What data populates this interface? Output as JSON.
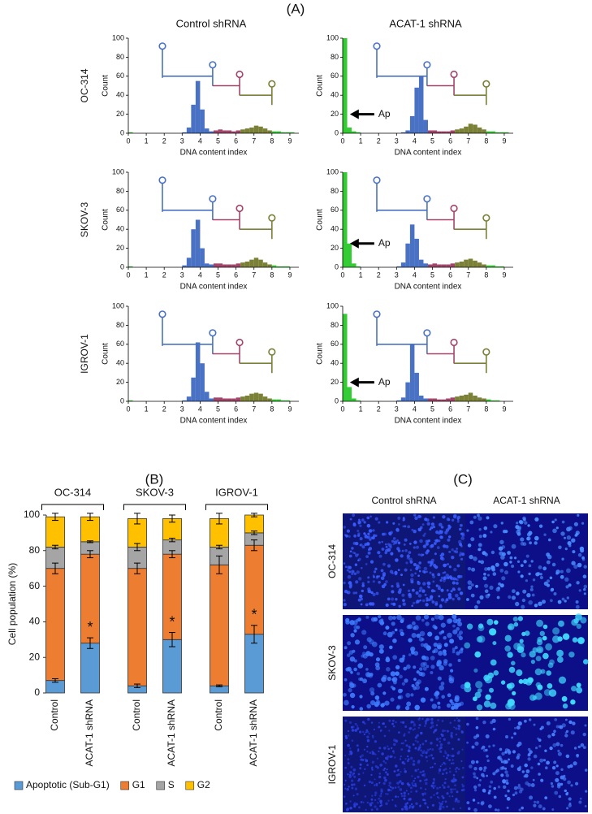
{
  "panel_labels": [
    "(A)",
    "(B)",
    "(C)"
  ],
  "panel_a": {
    "columns": [
      "Control shRNA",
      "ACAT-1 shRNA"
    ],
    "rows": [
      "OC-314",
      "SKOV-3",
      "IGROV-1"
    ]
  },
  "panel_c": {
    "columns": [
      "Control shRNA",
      "ACAT-1 shRNA"
    ],
    "rows": [
      "OC-314",
      "SKOV-3",
      "IGROV-1"
    ]
  },
  "chart_data": [
    {
      "type": "histogram",
      "xlabel": "DNA content index",
      "ylabel": "Count",
      "bins": [
        0,
        0.25,
        0.5,
        0.75,
        1,
        1.25,
        1.5,
        1.75,
        2,
        2.25,
        2.5,
        2.75,
        3,
        3.25,
        3.5,
        3.75,
        4,
        4.25,
        4.5,
        4.75,
        5,
        5.25,
        5.5,
        5.75,
        6,
        6.25,
        6.5,
        6.75,
        7,
        7.25,
        7.5,
        7.75,
        8,
        8.25,
        8.5,
        8.75,
        9,
        9.25,
        9.5
      ],
      "counts": [
        1,
        0,
        0,
        0,
        0,
        0,
        0,
        0,
        0,
        0,
        0,
        0,
        1,
        6,
        30,
        55,
        25,
        5,
        2,
        3,
        4,
        3,
        3,
        2,
        3,
        4,
        5,
        6,
        8,
        7,
        5,
        3,
        2,
        2,
        1,
        1,
        1,
        0
      ],
      "xlim": [
        0,
        9.5
      ],
      "ylim": [
        0,
        100
      ],
      "xticks": [
        0,
        1,
        2,
        3,
        4,
        5,
        6,
        7,
        8,
        9
      ],
      "yticks": [
        0,
        20,
        40,
        60,
        80,
        100
      ],
      "other_color": "#33cc33",
      "gates": [
        {
          "from": 1.9,
          "to": 4.7,
          "level": 60,
          "color": "#4a72c4"
        },
        {
          "from": 4.7,
          "to": 6.2,
          "level": 50,
          "color": "#a3456a"
        },
        {
          "from": 6.2,
          "to": 8,
          "level": 40,
          "color": "#7a8035"
        }
      ]
    },
    {
      "type": "histogram",
      "xlabel": "DNA content index",
      "ylabel": "Count",
      "bins": [
        0,
        0.25,
        0.5,
        0.75,
        1,
        1.25,
        1.5,
        1.75,
        2,
        2.25,
        2.5,
        2.75,
        3,
        3.25,
        3.5,
        3.75,
        4,
        4.25,
        4.5,
        4.75,
        5,
        5.25,
        5.5,
        5.75,
        6,
        6.25,
        6.5,
        6.75,
        7,
        7.25,
        7.5,
        7.75,
        8,
        8.25,
        8.5,
        8.75,
        9,
        9.25,
        9.5
      ],
      "counts": [
        100,
        6,
        2,
        1,
        0,
        0,
        0,
        0,
        0,
        0,
        0,
        0,
        0,
        1,
        3,
        18,
        48,
        60,
        14,
        3,
        3,
        2,
        2,
        2,
        3,
        4,
        5,
        7,
        10,
        9,
        6,
        4,
        2,
        2,
        1,
        1,
        1,
        0
      ],
      "xlim": [
        0,
        9.5
      ],
      "ylim": [
        0,
        100
      ],
      "xticks": [
        0,
        1,
        2,
        3,
        4,
        5,
        6,
        7,
        8,
        9
      ],
      "yticks": [
        0,
        20,
        40,
        60,
        80,
        100
      ],
      "other_color": "#33cc33",
      "gates": [
        {
          "from": 1.9,
          "to": 4.7,
          "level": 60,
          "color": "#4a72c4"
        },
        {
          "from": 4.7,
          "to": 6.2,
          "level": 50,
          "color": "#a3456a"
        },
        {
          "from": 6.2,
          "to": 8,
          "level": 40,
          "color": "#7a8035"
        }
      ],
      "annotation": {
        "text": "Ap",
        "x": 0.4,
        "y": 20
      }
    },
    {
      "type": "histogram",
      "xlabel": "DNA content index",
      "ylabel": "Count",
      "bins": [
        0,
        0.25,
        0.5,
        0.75,
        1,
        1.25,
        1.5,
        1.75,
        2,
        2.25,
        2.5,
        2.75,
        3,
        3.25,
        3.5,
        3.75,
        4,
        4.25,
        4.5,
        4.75,
        5,
        5.25,
        5.5,
        5.75,
        6,
        6.25,
        6.5,
        6.75,
        7,
        7.25,
        7.5,
        7.75,
        8,
        8.25,
        8.5,
        8.75,
        9,
        9.25,
        9.5
      ],
      "counts": [
        1,
        0,
        0,
        0,
        0,
        0,
        0,
        0,
        0,
        0,
        0,
        0,
        2,
        10,
        40,
        50,
        20,
        4,
        3,
        4,
        4,
        3,
        3,
        3,
        4,
        5,
        6,
        8,
        10,
        8,
        5,
        3,
        2,
        1,
        1,
        1,
        0,
        0
      ],
      "xlim": [
        0,
        9.5
      ],
      "ylim": [
        0,
        100
      ],
      "xticks": [
        0,
        1,
        2,
        3,
        4,
        5,
        6,
        7,
        8,
        9
      ],
      "yticks": [
        0,
        20,
        40,
        60,
        80,
        100
      ],
      "other_color": "#33cc33",
      "gates": [
        {
          "from": 1.9,
          "to": 4.7,
          "level": 60,
          "color": "#4a72c4"
        },
        {
          "from": 4.7,
          "to": 6.2,
          "level": 50,
          "color": "#a3456a"
        },
        {
          "from": 6.2,
          "to": 8,
          "level": 40,
          "color": "#7a8035"
        }
      ]
    },
    {
      "type": "histogram",
      "xlabel": "DNA content index",
      "ylabel": "Count",
      "bins": [
        0,
        0.25,
        0.5,
        0.75,
        1,
        1.25,
        1.5,
        1.75,
        2,
        2.25,
        2.5,
        2.75,
        3,
        3.25,
        3.5,
        3.75,
        4,
        4.25,
        4.5,
        4.75,
        5,
        5.25,
        5.5,
        5.75,
        6,
        6.25,
        6.5,
        6.75,
        7,
        7.25,
        7.5,
        7.75,
        8,
        8.25,
        8.5,
        8.75,
        9,
        9.25,
        9.5
      ],
      "counts": [
        100,
        25,
        4,
        1,
        0,
        0,
        0,
        0,
        0,
        0,
        0,
        0,
        1,
        5,
        25,
        45,
        30,
        8,
        4,
        3,
        4,
        3,
        3,
        3,
        4,
        5,
        6,
        8,
        9,
        7,
        5,
        3,
        2,
        2,
        1,
        1,
        0,
        0
      ],
      "xlim": [
        0,
        9.5
      ],
      "ylim": [
        0,
        100
      ],
      "xticks": [
        0,
        1,
        2,
        3,
        4,
        5,
        6,
        7,
        8,
        9
      ],
      "yticks": [
        0,
        20,
        40,
        60,
        80,
        100
      ],
      "other_color": "#33cc33",
      "gates": [
        {
          "from": 1.9,
          "to": 4.7,
          "level": 60,
          "color": "#4a72c4"
        },
        {
          "from": 4.7,
          "to": 6.2,
          "level": 50,
          "color": "#a3456a"
        },
        {
          "from": 6.2,
          "to": 8,
          "level": 40,
          "color": "#7a8035"
        }
      ],
      "annotation": {
        "text": "Ap",
        "x": 0.4,
        "y": 25
      }
    },
    {
      "type": "histogram",
      "xlabel": "DNA content index",
      "ylabel": "Count",
      "bins": [
        0,
        0.25,
        0.5,
        0.75,
        1,
        1.25,
        1.5,
        1.75,
        2,
        2.25,
        2.5,
        2.75,
        3,
        3.25,
        3.5,
        3.75,
        4,
        4.25,
        4.5,
        4.75,
        5,
        5.25,
        5.5,
        5.75,
        6,
        6.25,
        6.5,
        6.75,
        7,
        7.25,
        7.5,
        7.75,
        8,
        8.25,
        8.5,
        8.75,
        9,
        9.25,
        9.5
      ],
      "counts": [
        1,
        0,
        0,
        0,
        0,
        0,
        0,
        0,
        0,
        0,
        0,
        0,
        1,
        5,
        25,
        62,
        40,
        10,
        3,
        4,
        4,
        3,
        3,
        3,
        4,
        5,
        6,
        8,
        9,
        8,
        5,
        3,
        2,
        2,
        1,
        1,
        0,
        0
      ],
      "xlim": [
        0,
        9.5
      ],
      "ylim": [
        0,
        100
      ],
      "xticks": [
        0,
        1,
        2,
        3,
        4,
        5,
        6,
        7,
        8,
        9
      ],
      "yticks": [
        0,
        20,
        40,
        60,
        80,
        100
      ],
      "other_color": "#33cc33",
      "gates": [
        {
          "from": 1.9,
          "to": 4.7,
          "level": 60,
          "color": "#4a72c4"
        },
        {
          "from": 4.7,
          "to": 6.2,
          "level": 50,
          "color": "#a3456a"
        },
        {
          "from": 6.2,
          "to": 8,
          "level": 40,
          "color": "#7a8035"
        }
      ]
    },
    {
      "type": "histogram",
      "xlabel": "DNA content index",
      "ylabel": "Count",
      "bins": [
        0,
        0.25,
        0.5,
        0.75,
        1,
        1.25,
        1.5,
        1.75,
        2,
        2.25,
        2.5,
        2.75,
        3,
        3.25,
        3.5,
        3.75,
        4,
        4.25,
        4.5,
        4.75,
        5,
        5.25,
        5.5,
        5.75,
        6,
        6.25,
        6.5,
        6.75,
        7,
        7.25,
        7.5,
        7.75,
        8,
        8.25,
        8.5,
        8.75,
        9,
        9.25,
        9.5
      ],
      "counts": [
        92,
        15,
        3,
        1,
        0,
        0,
        0,
        0,
        0,
        0,
        0,
        0,
        1,
        4,
        20,
        60,
        30,
        6,
        3,
        3,
        3,
        2,
        2,
        3,
        4,
        5,
        6,
        7,
        9,
        6,
        4,
        3,
        2,
        1,
        1,
        0,
        0,
        0
      ],
      "xlim": [
        0,
        9.5
      ],
      "ylim": [
        0,
        100
      ],
      "xticks": [
        0,
        1,
        2,
        3,
        4,
        5,
        6,
        7,
        8,
        9
      ],
      "yticks": [
        0,
        20,
        40,
        60,
        80,
        100
      ],
      "other_color": "#33cc33",
      "gates": [
        {
          "from": 1.9,
          "to": 4.7,
          "level": 60,
          "color": "#4a72c4"
        },
        {
          "from": 4.7,
          "to": 6.2,
          "level": 50,
          "color": "#a3456a"
        },
        {
          "from": 6.2,
          "to": 8,
          "level": 40,
          "color": "#7a8035"
        }
      ],
      "annotation": {
        "text": "Ap",
        "x": 0.4,
        "y": 20
      }
    },
    {
      "type": "stacked_bar",
      "ylabel": "Cell population (%)",
      "groups": [
        "OC-314",
        "SKOV-3",
        "IGROV-1"
      ],
      "categories": [
        "Control",
        "ACAT-1 shRNA",
        "Control",
        "ACAT-1 shRNA",
        "Control",
        "ACAT-1 shRNA"
      ],
      "series": [
        {
          "name": "Apoptotic (Sub-G1)",
          "color": "#5b9bd5",
          "values": [
            7,
            28,
            4,
            30,
            4,
            33
          ],
          "errors": [
            1,
            3,
            1,
            4,
            0.5,
            5
          ]
        },
        {
          "name": "G1",
          "color": "#ed7d31",
          "values": [
            63,
            50,
            66,
            48,
            68,
            50
          ],
          "errors": [
            3,
            2,
            3,
            2,
            5,
            3
          ]
        },
        {
          "name": "S",
          "color": "#a5a5a5",
          "values": [
            12,
            7,
            12,
            8,
            10,
            7
          ],
          "errors": [
            1,
            0.5,
            2,
            1,
            1,
            1
          ]
        },
        {
          "name": "G2",
          "color": "#ffc000",
          "values": [
            17,
            14,
            16,
            12,
            16,
            10
          ],
          "errors": [
            2,
            2,
            3,
            2,
            3,
            1
          ]
        }
      ],
      "significance": [
        null,
        "*",
        null,
        "*",
        null,
        "*"
      ],
      "ylim": [
        0,
        100
      ],
      "yticks": [
        0,
        20,
        40,
        60,
        80,
        100
      ]
    }
  ]
}
